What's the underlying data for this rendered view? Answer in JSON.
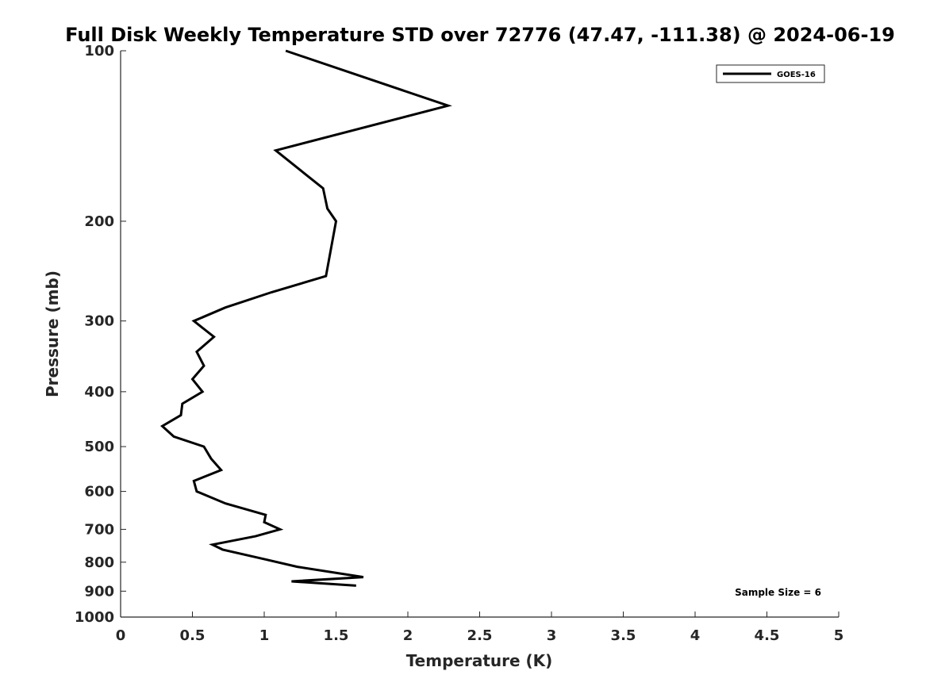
{
  "chart_data": {
    "type": "line",
    "title": "Full Disk Weekly Temperature STD over 72776 (47.47, -111.38) @ 2024-06-19",
    "xlabel": "Temperature (K)",
    "ylabel": "Pressure (mb)",
    "xlim": [
      0,
      5
    ],
    "ylim": [
      100,
      1000
    ],
    "y_scale": "log",
    "y_reversed": true,
    "x_ticks": [
      0,
      0.5,
      1,
      1.5,
      2,
      2.5,
      3,
      3.5,
      4,
      4.5,
      5
    ],
    "x_tick_labels": [
      "0",
      "0.5",
      "1",
      "1.5",
      "2",
      "2.5",
      "3",
      "3.5",
      "4",
      "4.5",
      "5"
    ],
    "y_ticks": [
      100,
      200,
      300,
      400,
      500,
      600,
      700,
      800,
      900,
      1000
    ],
    "y_tick_labels": [
      "100",
      "200",
      "300",
      "400",
      "500",
      "600",
      "700",
      "800",
      "900",
      "1000"
    ],
    "grid": false,
    "legend_position": "top-right",
    "series": [
      {
        "name": "GOES-16",
        "color": "#000000",
        "points": [
          [
            1.15,
            100
          ],
          [
            2.28,
            125
          ],
          [
            1.08,
            150
          ],
          [
            1.41,
            175
          ],
          [
            1.44,
            190
          ],
          [
            1.5,
            200
          ],
          [
            1.43,
            250
          ],
          [
            1.05,
            267
          ],
          [
            0.73,
            284
          ],
          [
            0.51,
            300
          ],
          [
            0.65,
            320
          ],
          [
            0.53,
            340
          ],
          [
            0.58,
            360
          ],
          [
            0.5,
            380
          ],
          [
            0.57,
            400
          ],
          [
            0.43,
            420
          ],
          [
            0.42,
            440
          ],
          [
            0.29,
            460
          ],
          [
            0.37,
            480
          ],
          [
            0.58,
            500
          ],
          [
            0.63,
            525
          ],
          [
            0.7,
            550
          ],
          [
            0.51,
            575
          ],
          [
            0.53,
            600
          ],
          [
            0.73,
            630
          ],
          [
            1.01,
            660
          ],
          [
            1.0,
            680
          ],
          [
            1.11,
            700
          ],
          [
            0.94,
            720
          ],
          [
            0.64,
            745
          ],
          [
            0.71,
            760
          ],
          [
            1.0,
            790
          ],
          [
            1.23,
            815
          ],
          [
            1.69,
            850
          ],
          [
            1.19,
            865
          ],
          [
            1.64,
            880
          ]
        ]
      }
    ],
    "annotation": "Sample Size = 6"
  }
}
